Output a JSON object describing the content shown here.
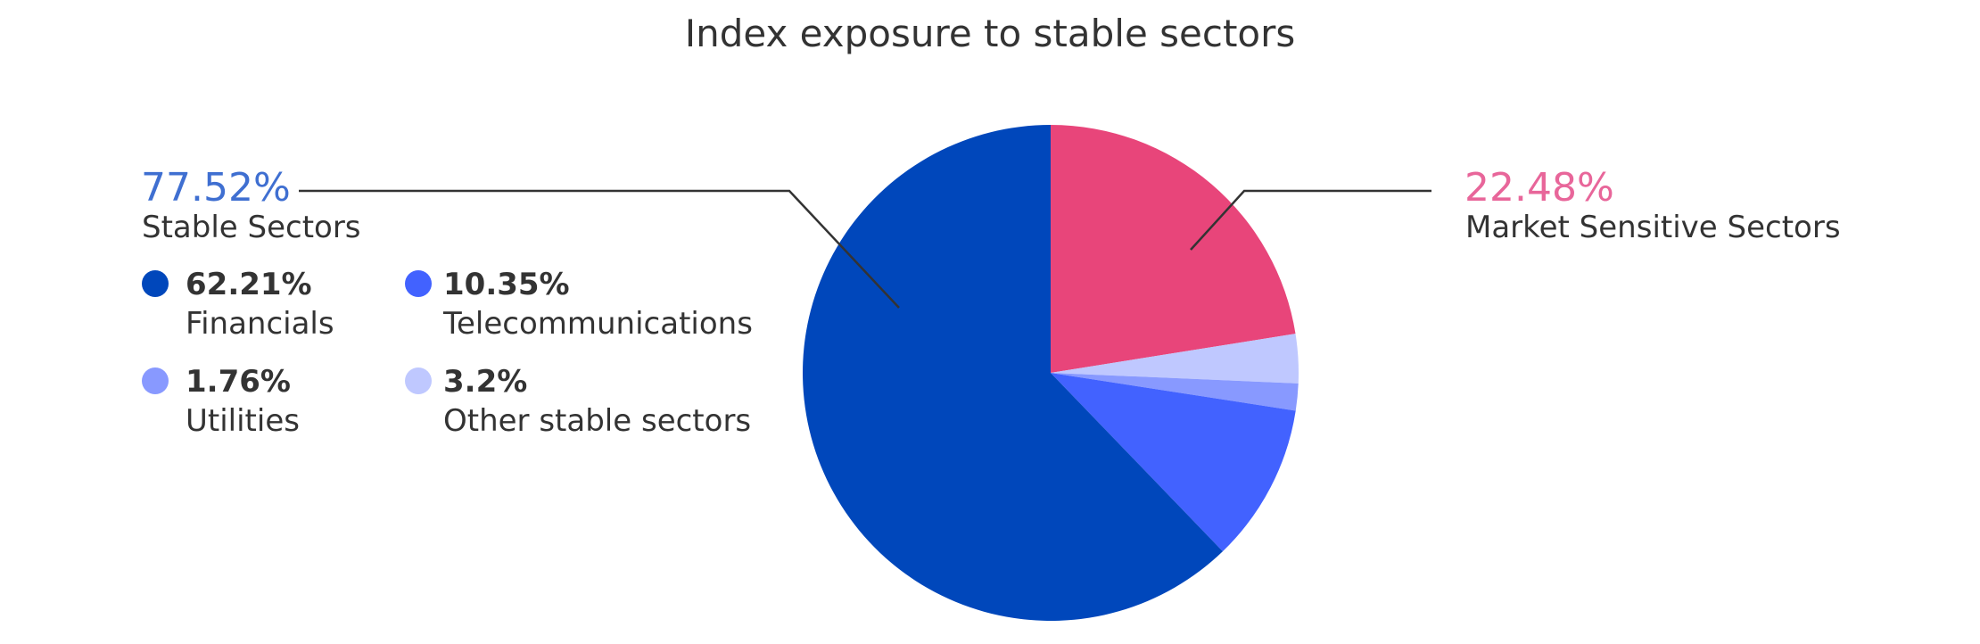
{
  "chart_data": {
    "type": "pie",
    "title": "Index exposure to stable sectors",
    "start_angle_deg": 0,
    "direction": "clockwise",
    "slices": [
      {
        "key": "market_sensitive",
        "name": "Market Sensitive Sectors",
        "value": 22.48,
        "color": "#E8457A"
      },
      {
        "key": "other_stable",
        "name": "Other stable sectors",
        "value": 3.2,
        "color": "#BFC8FF"
      },
      {
        "key": "utilities",
        "name": "Utilities",
        "value": 1.76,
        "color": "#8899FF"
      },
      {
        "key": "telecom",
        "name": "Telecommunications",
        "value": 10.35,
        "color": "#4262FF"
      },
      {
        "key": "financials",
        "name": "Financials",
        "value": 62.21,
        "color": "#0047BB"
      }
    ],
    "groups": {
      "stable": {
        "value_text": "77.52%",
        "label": "Stable Sectors",
        "color": "#3F6FD1",
        "items": [
          {
            "value_text": "62.21%",
            "label": "Financials",
            "color": "#0047BB"
          },
          {
            "value_text": "10.35%",
            "label": "Telecommunications",
            "color": "#4262FF"
          },
          {
            "value_text": "1.76%",
            "label": "Utilities",
            "color": "#8899FF"
          },
          {
            "value_text": "3.2%",
            "label": "Other stable sectors",
            "color": "#BFC8FF"
          }
        ]
      },
      "market_sensitive": {
        "value_text": "22.48%",
        "label": "Market Sensitive Sectors",
        "color": "#E8669A"
      }
    }
  }
}
